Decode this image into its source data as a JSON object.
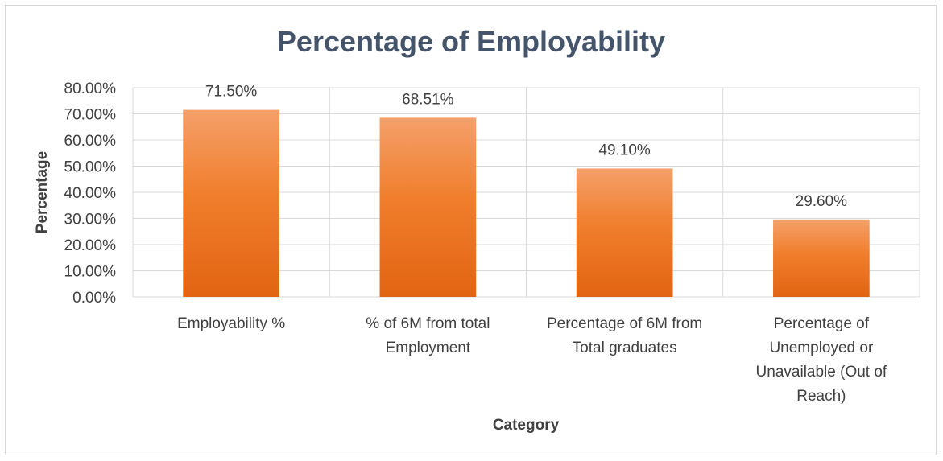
{
  "chart_data": {
    "type": "bar",
    "title": "Percentage of Employability",
    "xlabel": "Category",
    "ylabel": "Percentage",
    "categories": [
      [
        "Employability %"
      ],
      [
        "% of 6M from total",
        "Employment"
      ],
      [
        "Percentage of 6M from",
        "Total graduates"
      ],
      [
        "Percentage of",
        "Unemployed or",
        "Unavailable (Out of",
        "Reach)"
      ]
    ],
    "values": [
      71.5,
      68.51,
      49.1,
      29.6
    ],
    "data_labels": [
      "71.50%",
      "68.51%",
      "49.10%",
      "29.60%"
    ],
    "y_ticks": [
      "0.00%",
      "10.00%",
      "20.00%",
      "30.00%",
      "40.00%",
      "50.00%",
      "60.00%",
      "70.00%",
      "80.00%"
    ],
    "ylim": [
      0,
      80
    ],
    "grid": true,
    "legend": "none",
    "colors": {
      "bar_top": "#f4a06a",
      "bar_mid": "#f07e2c",
      "bar_bottom": "#e26412",
      "gridline": "#d9d9d9",
      "title": "#44546a",
      "text": "#404040"
    }
  }
}
